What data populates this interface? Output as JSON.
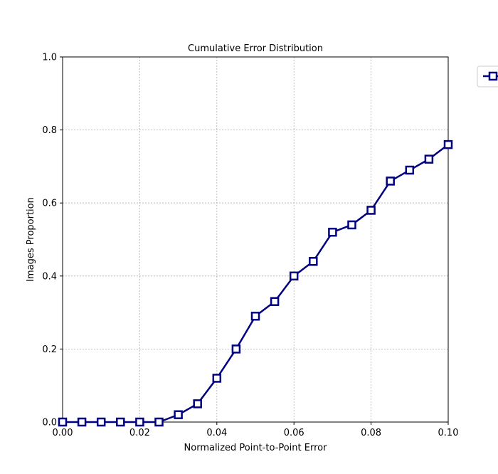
{
  "chart_data": {
    "type": "line",
    "title": "Cumulative Error Distribution",
    "xlabel": "Normalized Point-to-Point Error",
    "ylabel": "Images Proportion",
    "xlim": [
      0.0,
      0.1
    ],
    "ylim": [
      0.0,
      1.0
    ],
    "xticks": [
      "0.00",
      "0.02",
      "0.04",
      "0.06",
      "0.08",
      "0.10"
    ],
    "yticks": [
      "0.0",
      "0.2",
      "0.4",
      "0.6",
      "0.8",
      "1.0"
    ],
    "grid": true,
    "legend_position": "outside-top-right",
    "series": [
      {
        "name": "",
        "color": "#000080",
        "marker": "square",
        "x": [
          0.0,
          0.005,
          0.01,
          0.015,
          0.02,
          0.025,
          0.03,
          0.035,
          0.04,
          0.045,
          0.05,
          0.055,
          0.06,
          0.065,
          0.07,
          0.075,
          0.08,
          0.085,
          0.09,
          0.095,
          0.1
        ],
        "y": [
          0.0,
          0.0,
          0.0,
          0.0,
          0.0,
          0.0,
          0.02,
          0.05,
          0.12,
          0.2,
          0.29,
          0.33,
          0.4,
          0.44,
          0.52,
          0.54,
          0.58,
          0.66,
          0.69,
          0.72,
          0.76
        ]
      }
    ]
  }
}
